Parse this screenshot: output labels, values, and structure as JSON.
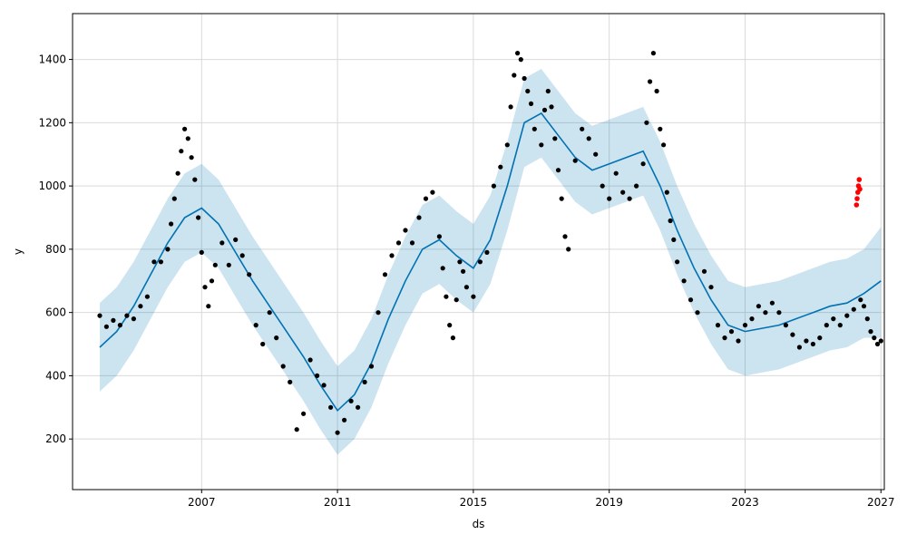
{
  "chart_data": {
    "type": "scatter",
    "title": "",
    "xlabel": "ds",
    "ylabel": "y",
    "xlim": [
      2003.2,
      2027.1
    ],
    "ylim": [
      40,
      1545
    ],
    "grid": true,
    "legend": "none",
    "x_ticks": [
      2007,
      2011,
      2015,
      2019,
      2023,
      2027
    ],
    "y_ticks": [
      200,
      400,
      600,
      800,
      1000,
      1200,
      1400
    ],
    "colors": {
      "observed": "#000000",
      "forecast_line": "#0072B2",
      "uncertainty_band": "#0072B2",
      "highlight_points": "#FF0000"
    },
    "series": [
      {
        "role": "observed",
        "points": [
          [
            2004.0,
            590
          ],
          [
            2004.2,
            555
          ],
          [
            2004.4,
            575
          ],
          [
            2004.6,
            560
          ],
          [
            2004.8,
            590
          ],
          [
            2005.0,
            580
          ],
          [
            2005.2,
            620
          ],
          [
            2005.4,
            650
          ],
          [
            2005.6,
            760
          ],
          [
            2005.8,
            760
          ],
          [
            2006.0,
            800
          ],
          [
            2006.1,
            880
          ],
          [
            2006.2,
            960
          ],
          [
            2006.3,
            1040
          ],
          [
            2006.4,
            1110
          ],
          [
            2006.5,
            1180
          ],
          [
            2006.6,
            1150
          ],
          [
            2006.7,
            1090
          ],
          [
            2006.8,
            1020
          ],
          [
            2006.9,
            900
          ],
          [
            2007.0,
            790
          ],
          [
            2007.1,
            680
          ],
          [
            2007.2,
            620
          ],
          [
            2007.3,
            700
          ],
          [
            2007.4,
            750
          ],
          [
            2007.6,
            820
          ],
          [
            2007.8,
            750
          ],
          [
            2008.0,
            830
          ],
          [
            2008.2,
            780
          ],
          [
            2008.4,
            720
          ],
          [
            2008.6,
            560
          ],
          [
            2008.8,
            500
          ],
          [
            2009.0,
            600
          ],
          [
            2009.2,
            520
          ],
          [
            2009.4,
            430
          ],
          [
            2009.6,
            380
          ],
          [
            2009.8,
            230
          ],
          [
            2010.0,
            280
          ],
          [
            2010.2,
            450
          ],
          [
            2010.4,
            400
          ],
          [
            2010.6,
            370
          ],
          [
            2010.8,
            300
          ],
          [
            2011.0,
            220
          ],
          [
            2011.2,
            260
          ],
          [
            2011.4,
            320
          ],
          [
            2011.6,
            300
          ],
          [
            2011.8,
            380
          ],
          [
            2012.0,
            430
          ],
          [
            2012.2,
            600
          ],
          [
            2012.4,
            720
          ],
          [
            2012.6,
            780
          ],
          [
            2012.8,
            820
          ],
          [
            2013.0,
            860
          ],
          [
            2013.2,
            820
          ],
          [
            2013.4,
            900
          ],
          [
            2013.6,
            960
          ],
          [
            2013.8,
            980
          ],
          [
            2014.0,
            840
          ],
          [
            2014.1,
            740
          ],
          [
            2014.2,
            650
          ],
          [
            2014.3,
            560
          ],
          [
            2014.4,
            520
          ],
          [
            2014.5,
            640
          ],
          [
            2014.6,
            760
          ],
          [
            2014.7,
            730
          ],
          [
            2014.8,
            680
          ],
          [
            2015.0,
            650
          ],
          [
            2015.2,
            760
          ],
          [
            2015.4,
            790
          ],
          [
            2015.6,
            1000
          ],
          [
            2015.8,
            1060
          ],
          [
            2016.0,
            1130
          ],
          [
            2016.1,
            1250
          ],
          [
            2016.2,
            1350
          ],
          [
            2016.3,
            1420
          ],
          [
            2016.4,
            1400
          ],
          [
            2016.5,
            1340
          ],
          [
            2016.6,
            1300
          ],
          [
            2016.7,
            1260
          ],
          [
            2016.8,
            1180
          ],
          [
            2017.0,
            1130
          ],
          [
            2017.1,
            1240
          ],
          [
            2017.2,
            1300
          ],
          [
            2017.3,
            1250
          ],
          [
            2017.4,
            1150
          ],
          [
            2017.5,
            1050
          ],
          [
            2017.6,
            960
          ],
          [
            2017.7,
            840
          ],
          [
            2017.8,
            800
          ],
          [
            2018.0,
            1080
          ],
          [
            2018.2,
            1180
          ],
          [
            2018.4,
            1150
          ],
          [
            2018.6,
            1100
          ],
          [
            2018.8,
            1000
          ],
          [
            2019.0,
            960
          ],
          [
            2019.2,
            1040
          ],
          [
            2019.4,
            980
          ],
          [
            2019.6,
            960
          ],
          [
            2019.8,
            1000
          ],
          [
            2020.0,
            1070
          ],
          [
            2020.1,
            1200
          ],
          [
            2020.2,
            1330
          ],
          [
            2020.3,
            1420
          ],
          [
            2020.4,
            1300
          ],
          [
            2020.5,
            1180
          ],
          [
            2020.6,
            1130
          ],
          [
            2020.7,
            980
          ],
          [
            2020.8,
            890
          ],
          [
            2020.9,
            830
          ],
          [
            2021.0,
            760
          ],
          [
            2021.2,
            700
          ],
          [
            2021.4,
            640
          ],
          [
            2021.6,
            600
          ],
          [
            2021.8,
            730
          ],
          [
            2022.0,
            680
          ],
          [
            2022.2,
            560
          ],
          [
            2022.4,
            520
          ],
          [
            2022.6,
            540
          ],
          [
            2022.8,
            510
          ],
          [
            2023.0,
            560
          ],
          [
            2023.2,
            580
          ],
          [
            2023.4,
            620
          ],
          [
            2023.6,
            600
          ],
          [
            2023.8,
            630
          ],
          [
            2024.0,
            600
          ],
          [
            2024.2,
            560
          ],
          [
            2024.4,
            530
          ],
          [
            2024.6,
            490
          ],
          [
            2024.8,
            510
          ],
          [
            2025.0,
            500
          ],
          [
            2025.2,
            520
          ],
          [
            2025.4,
            560
          ],
          [
            2025.6,
            580
          ],
          [
            2025.8,
            560
          ],
          [
            2026.0,
            590
          ],
          [
            2026.2,
            610
          ],
          [
            2026.4,
            640
          ],
          [
            2026.5,
            620
          ],
          [
            2026.6,
            580
          ],
          [
            2026.7,
            540
          ],
          [
            2026.8,
            520
          ],
          [
            2026.9,
            500
          ],
          [
            2027.0,
            510
          ]
        ]
      },
      {
        "role": "forecast",
        "points": [
          [
            2004.0,
            490
          ],
          [
            2004.5,
            540
          ],
          [
            2005.0,
            620
          ],
          [
            2005.5,
            720
          ],
          [
            2006.0,
            820
          ],
          [
            2006.5,
            900
          ],
          [
            2007.0,
            930
          ],
          [
            2007.5,
            880
          ],
          [
            2008.0,
            790
          ],
          [
            2008.5,
            700
          ],
          [
            2009.0,
            620
          ],
          [
            2009.5,
            540
          ],
          [
            2010.0,
            460
          ],
          [
            2010.5,
            370
          ],
          [
            2011.0,
            290
          ],
          [
            2011.5,
            340
          ],
          [
            2012.0,
            440
          ],
          [
            2012.5,
            580
          ],
          [
            2013.0,
            700
          ],
          [
            2013.5,
            800
          ],
          [
            2014.0,
            830
          ],
          [
            2014.5,
            780
          ],
          [
            2015.0,
            740
          ],
          [
            2015.5,
            830
          ],
          [
            2016.0,
            1000
          ],
          [
            2016.5,
            1200
          ],
          [
            2017.0,
            1230
          ],
          [
            2017.5,
            1160
          ],
          [
            2018.0,
            1090
          ],
          [
            2018.5,
            1050
          ],
          [
            2019.0,
            1070
          ],
          [
            2019.5,
            1090
          ],
          [
            2020.0,
            1110
          ],
          [
            2020.5,
            1000
          ],
          [
            2021.0,
            860
          ],
          [
            2021.5,
            740
          ],
          [
            2022.0,
            640
          ],
          [
            2022.5,
            560
          ],
          [
            2023.0,
            540
          ],
          [
            2023.5,
            550
          ],
          [
            2024.0,
            560
          ],
          [
            2024.5,
            580
          ],
          [
            2025.0,
            600
          ],
          [
            2025.5,
            620
          ],
          [
            2026.0,
            630
          ],
          [
            2026.5,
            660
          ],
          [
            2027.0,
            700
          ]
        ]
      },
      {
        "role": "band",
        "lower": [
          [
            2004.0,
            350
          ],
          [
            2004.5,
            400
          ],
          [
            2005.0,
            480
          ],
          [
            2005.5,
            580
          ],
          [
            2006.0,
            680
          ],
          [
            2006.5,
            760
          ],
          [
            2007.0,
            790
          ],
          [
            2007.5,
            740
          ],
          [
            2008.0,
            650
          ],
          [
            2008.5,
            560
          ],
          [
            2009.0,
            480
          ],
          [
            2009.5,
            400
          ],
          [
            2010.0,
            320
          ],
          [
            2010.5,
            230
          ],
          [
            2011.0,
            150
          ],
          [
            2011.5,
            200
          ],
          [
            2012.0,
            300
          ],
          [
            2012.5,
            440
          ],
          [
            2013.0,
            560
          ],
          [
            2013.5,
            660
          ],
          [
            2014.0,
            690
          ],
          [
            2014.5,
            640
          ],
          [
            2015.0,
            600
          ],
          [
            2015.5,
            690
          ],
          [
            2016.0,
            860
          ],
          [
            2016.5,
            1060
          ],
          [
            2017.0,
            1090
          ],
          [
            2017.5,
            1020
          ],
          [
            2018.0,
            950
          ],
          [
            2018.5,
            910
          ],
          [
            2019.0,
            930
          ],
          [
            2019.5,
            950
          ],
          [
            2020.0,
            970
          ],
          [
            2020.5,
            860
          ],
          [
            2021.0,
            720
          ],
          [
            2021.5,
            600
          ],
          [
            2022.0,
            500
          ],
          [
            2022.5,
            420
          ],
          [
            2023.0,
            400
          ],
          [
            2023.5,
            410
          ],
          [
            2024.0,
            420
          ],
          [
            2024.5,
            440
          ],
          [
            2025.0,
            460
          ],
          [
            2025.5,
            480
          ],
          [
            2026.0,
            490
          ],
          [
            2026.5,
            520
          ],
          [
            2027.0,
            520
          ]
        ],
        "upper": [
          [
            2004.0,
            630
          ],
          [
            2004.5,
            680
          ],
          [
            2005.0,
            760
          ],
          [
            2005.5,
            860
          ],
          [
            2006.0,
            960
          ],
          [
            2006.5,
            1040
          ],
          [
            2007.0,
            1070
          ],
          [
            2007.5,
            1020
          ],
          [
            2008.0,
            930
          ],
          [
            2008.5,
            840
          ],
          [
            2009.0,
            760
          ],
          [
            2009.5,
            680
          ],
          [
            2010.0,
            600
          ],
          [
            2010.5,
            510
          ],
          [
            2011.0,
            430
          ],
          [
            2011.5,
            480
          ],
          [
            2012.0,
            580
          ],
          [
            2012.5,
            720
          ],
          [
            2013.0,
            840
          ],
          [
            2013.5,
            940
          ],
          [
            2014.0,
            970
          ],
          [
            2014.5,
            920
          ],
          [
            2015.0,
            880
          ],
          [
            2015.5,
            970
          ],
          [
            2016.0,
            1140
          ],
          [
            2016.5,
            1340
          ],
          [
            2017.0,
            1370
          ],
          [
            2017.5,
            1300
          ],
          [
            2018.0,
            1230
          ],
          [
            2018.5,
            1190
          ],
          [
            2019.0,
            1210
          ],
          [
            2019.5,
            1230
          ],
          [
            2020.0,
            1250
          ],
          [
            2020.5,
            1140
          ],
          [
            2021.0,
            1000
          ],
          [
            2021.5,
            880
          ],
          [
            2022.0,
            780
          ],
          [
            2022.5,
            700
          ],
          [
            2023.0,
            680
          ],
          [
            2023.5,
            690
          ],
          [
            2024.0,
            700
          ],
          [
            2024.5,
            720
          ],
          [
            2025.0,
            740
          ],
          [
            2025.5,
            760
          ],
          [
            2026.0,
            770
          ],
          [
            2026.5,
            800
          ],
          [
            2027.0,
            870
          ]
        ]
      },
      {
        "role": "highlight",
        "points": [
          [
            2026.28,
            940
          ],
          [
            2026.3,
            960
          ],
          [
            2026.32,
            980
          ],
          [
            2026.34,
            1000
          ],
          [
            2026.36,
            1020
          ],
          [
            2026.38,
            990
          ]
        ]
      }
    ]
  }
}
